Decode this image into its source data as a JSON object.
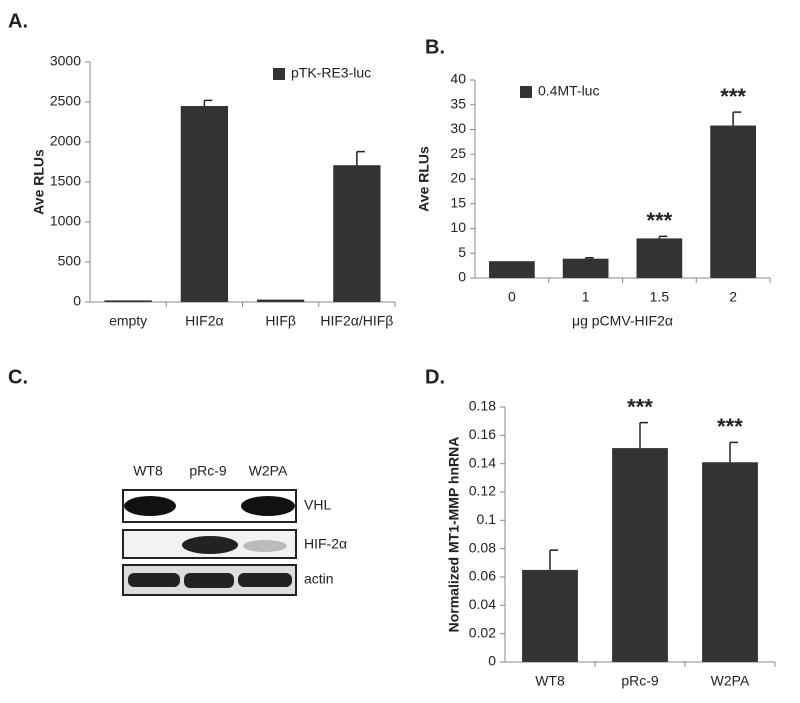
{
  "chart_data": [
    {
      "type": "bar",
      "label": "A.",
      "ylabel": "Ave RLUs",
      "categories": [
        "empty",
        "HIF2α",
        "HIFβ",
        "HIF2α/HIFβ"
      ],
      "series": [
        {
          "name": "pTK-RE3-luc",
          "color": "#333333",
          "values": [
            20,
            2450,
            30,
            1710
          ],
          "errors": [
            null,
            70,
            null,
            170
          ]
        }
      ],
      "ylim": [
        0,
        3000
      ],
      "yticks": [
        0,
        500,
        1000,
        1500,
        2000,
        2500,
        3000
      ],
      "legend": "top-right"
    },
    {
      "type": "bar",
      "label": "B.",
      "ylabel": "Ave RLUs",
      "xlabel": "μg pCMV-HIF2α",
      "categories": [
        "0",
        "1",
        "1.5",
        "2"
      ],
      "series": [
        {
          "name": "0.4MT-luc",
          "color": "#333333",
          "values": [
            3.4,
            3.9,
            8.0,
            30.8
          ],
          "errors": [
            null,
            0.2,
            0.4,
            2.7
          ]
        }
      ],
      "annotations": [
        null,
        null,
        "***",
        "***"
      ],
      "ylim": [
        0,
        40
      ],
      "yticks": [
        0,
        5,
        10,
        15,
        20,
        25,
        30,
        35,
        40
      ],
      "legend": "top-left"
    },
    {
      "type": "bar",
      "label": "D.",
      "ylabel": "Normalized MT1-MMP hnRNA",
      "categories": [
        "WT8",
        "pRc-9",
        "W2PA"
      ],
      "series": [
        {
          "color": "#333333",
          "values": [
            0.065,
            0.151,
            0.141
          ],
          "errors": [
            0.014,
            0.018,
            0.014
          ]
        }
      ],
      "annotations": [
        null,
        "***",
        "***"
      ],
      "ylim": [
        0,
        0.18
      ],
      "yticks": [
        0,
        0.02,
        0.04,
        0.06,
        0.08,
        0.1,
        0.12,
        0.14,
        0.16,
        0.18
      ]
    }
  ],
  "blot": {
    "label": "C.",
    "lanes": [
      "WT8",
      "pRc-9",
      "W2PA"
    ],
    "rows": [
      "VHL",
      "HIF-2α",
      "actin"
    ]
  }
}
